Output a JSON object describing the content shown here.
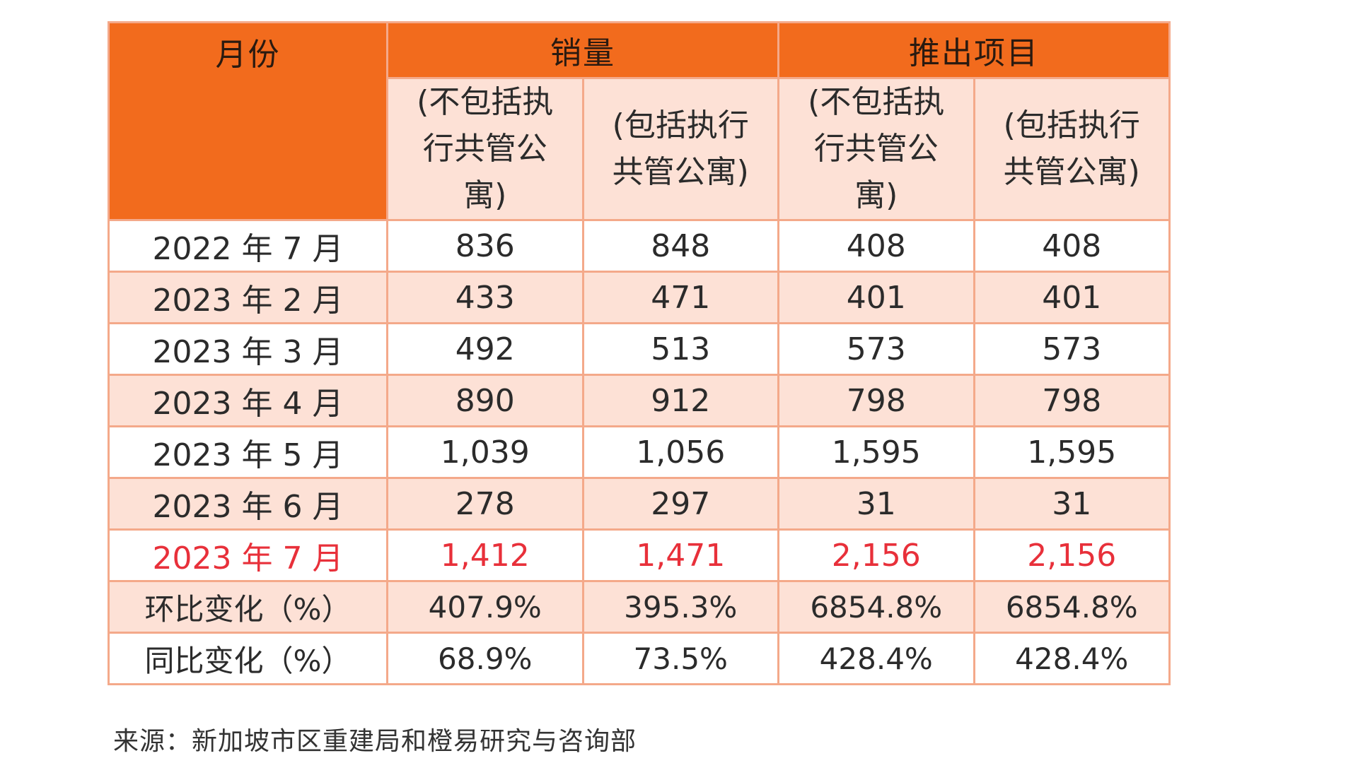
{
  "table": {
    "headers": {
      "month": "月份",
      "sales": "销量",
      "launches": "推出项目"
    },
    "subheaders": [
      "(不包括执行共管公寓)",
      "(包括执行共管公寓)",
      "(不包括执行共管公寓)",
      "(包括执行共管公寓)"
    ],
    "rows": [
      {
        "month": "2022 年 7 月",
        "cells": [
          "836",
          "848",
          "408",
          "408"
        ]
      },
      {
        "month": "2023 年 2 月",
        "cells": [
          "433",
          "471",
          "401",
          "401"
        ]
      },
      {
        "month": "2023 年 3 月",
        "cells": [
          "492",
          "513",
          "573",
          "573"
        ]
      },
      {
        "month": "2023 年 4 月",
        "cells": [
          "890",
          "912",
          "798",
          "798"
        ]
      },
      {
        "month": "2023 年 5 月",
        "cells": [
          "1,039",
          "1,056",
          "1,595",
          "1,595"
        ]
      },
      {
        "month": "2023 年 6 月",
        "cells": [
          "278",
          "297",
          "31",
          "31"
        ]
      },
      {
        "month": "2023 年 7 月",
        "cells": [
          "1,412",
          "1,471",
          "2,156",
          "2,156"
        ]
      },
      {
        "month": "环比变化（%）",
        "cells": [
          "407.9%",
          "395.3%",
          "6854.8%",
          "6854.8%"
        ]
      },
      {
        "month": "同比变化（%）",
        "cells": [
          "68.9%",
          "73.5%",
          "428.4%",
          "428.4%"
        ]
      }
    ]
  },
  "colors": {
    "header_orange": "#f26b1d",
    "band_peach": "#fde1d6",
    "highlight_red": "#e8303a"
  },
  "source": "来源：新加坡市区重建局和橙易研究与咨询部"
}
